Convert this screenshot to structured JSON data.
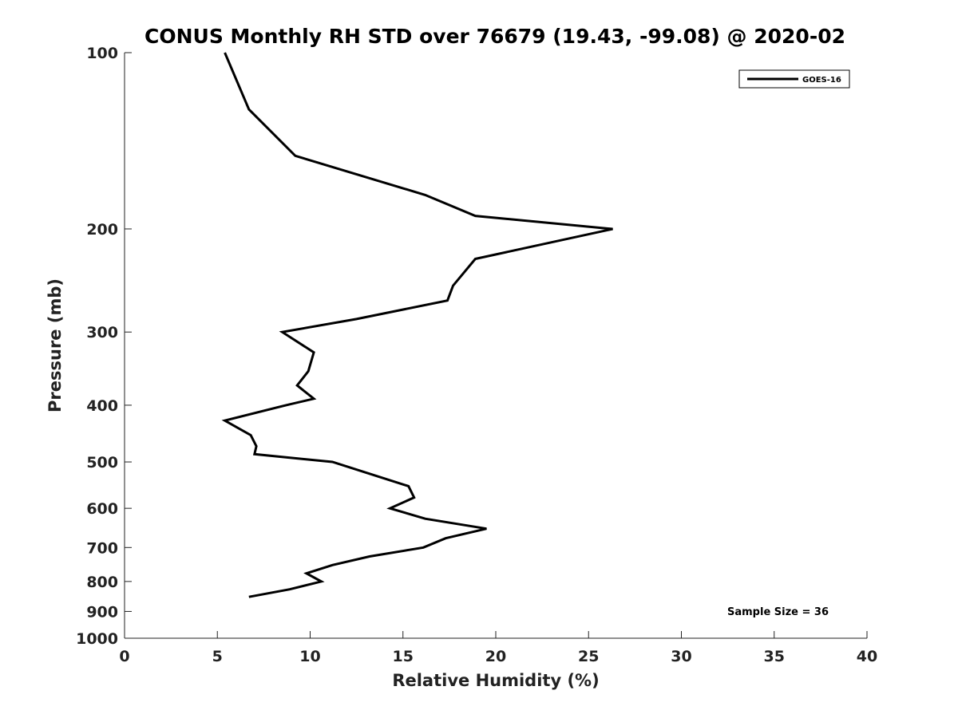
{
  "chart_data": {
    "type": "line",
    "title": "CONUS Monthly RH STD over 76679 (19.43, -99.08) @ 2020-02",
    "xlabel": "Relative Humidity (%)",
    "ylabel": "Pressure (mb)",
    "xlim": [
      0,
      40
    ],
    "ylim": [
      100,
      1000
    ],
    "yscale": "log",
    "y_reversed": true,
    "xticks": [
      0,
      5,
      10,
      15,
      20,
      25,
      30,
      35,
      40
    ],
    "xtick_labels": [
      "0",
      "5",
      "10",
      "15",
      "20",
      "25",
      "30",
      "35",
      "40"
    ],
    "yticks": [
      100,
      200,
      300,
      400,
      500,
      600,
      700,
      800,
      900,
      1000
    ],
    "ytick_labels": [
      "100",
      "200",
      "300",
      "400",
      "500",
      "600",
      "700",
      "800",
      "900",
      "1000"
    ],
    "grid": false,
    "legend_position": "top-right",
    "annotation": "Sample Size = 36",
    "series": [
      {
        "name": "GOES-16",
        "color": "#000000",
        "x": [
          5.4,
          6.7,
          9.2,
          16.2,
          18.9,
          26.3,
          18.9,
          17.7,
          17.4,
          12.5,
          8.5,
          10.2,
          9.9,
          9.3,
          10.2,
          8.7,
          5.4,
          6.8,
          7.1,
          7.0,
          11.2,
          13.3,
          15.3,
          15.6,
          14.3,
          16.2,
          19.5,
          17.3,
          16.1,
          13.2,
          11.2,
          9.8,
          10.6,
          8.9,
          6.7
        ],
        "y": [
          100,
          125,
          150,
          175,
          190,
          200,
          225,
          250,
          265,
          285,
          300,
          325,
          350,
          370,
          390,
          400,
          425,
          450,
          470,
          485,
          500,
          525,
          550,
          575,
          600,
          625,
          650,
          675,
          700,
          725,
          750,
          775,
          800,
          825,
          850
        ]
      }
    ]
  }
}
